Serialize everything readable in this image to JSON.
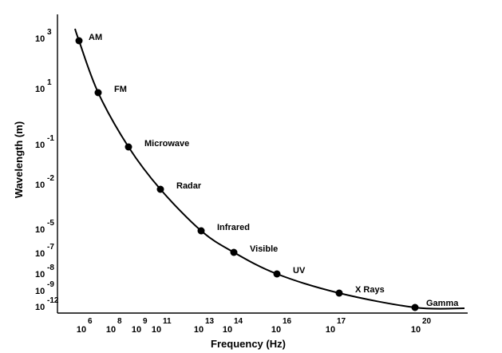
{
  "chart_data": {
    "type": "line",
    "xlabel": "Frequency (Hz)",
    "ylabel": "Wavelength (m)",
    "x_ticks": [
      {
        "base": "10",
        "exp": "6"
      },
      {
        "base": "10",
        "exp": "8"
      },
      {
        "base": "10",
        "exp": "9"
      },
      {
        "base": "10",
        "exp": "11"
      },
      {
        "base": "10",
        "exp": "13"
      },
      {
        "base": "10",
        "exp": "14"
      },
      {
        "base": "10",
        "exp": "16"
      },
      {
        "base": "10",
        "exp": "17"
      },
      {
        "base": "10",
        "exp": "20"
      }
    ],
    "y_ticks": [
      {
        "base": "10",
        "exp": "3"
      },
      {
        "base": "10",
        "exp": "1"
      },
      {
        "base": "10",
        "exp": "-1"
      },
      {
        "base": "10",
        "exp": "-2"
      },
      {
        "base": "10",
        "exp": "-5"
      },
      {
        "base": "10",
        "exp": "-7"
      },
      {
        "base": "10",
        "exp": "-8"
      },
      {
        "base": "10",
        "exp": "-9"
      },
      {
        "base": "10",
        "exp": "-12"
      }
    ],
    "points": [
      {
        "label": "AM",
        "x_exp": 6,
        "y_exp": 3
      },
      {
        "label": "FM",
        "x_exp": 8,
        "y_exp": 1
      },
      {
        "label": "Microwave",
        "x_exp": 9,
        "y_exp": -1
      },
      {
        "label": "Radar",
        "x_exp": 11,
        "y_exp": -2
      },
      {
        "label": "Infrared",
        "x_exp": 13,
        "y_exp": -5
      },
      {
        "label": "Visible",
        "x_exp": 14,
        "y_exp": -7
      },
      {
        "label": "UV",
        "x_exp": 16,
        "y_exp": -8
      },
      {
        "label": "X Rays",
        "x_exp": 17,
        "y_exp": -9
      },
      {
        "label": "Gamma",
        "x_exp": 20,
        "y_exp": -12
      }
    ],
    "grid": false,
    "legend": "none"
  }
}
